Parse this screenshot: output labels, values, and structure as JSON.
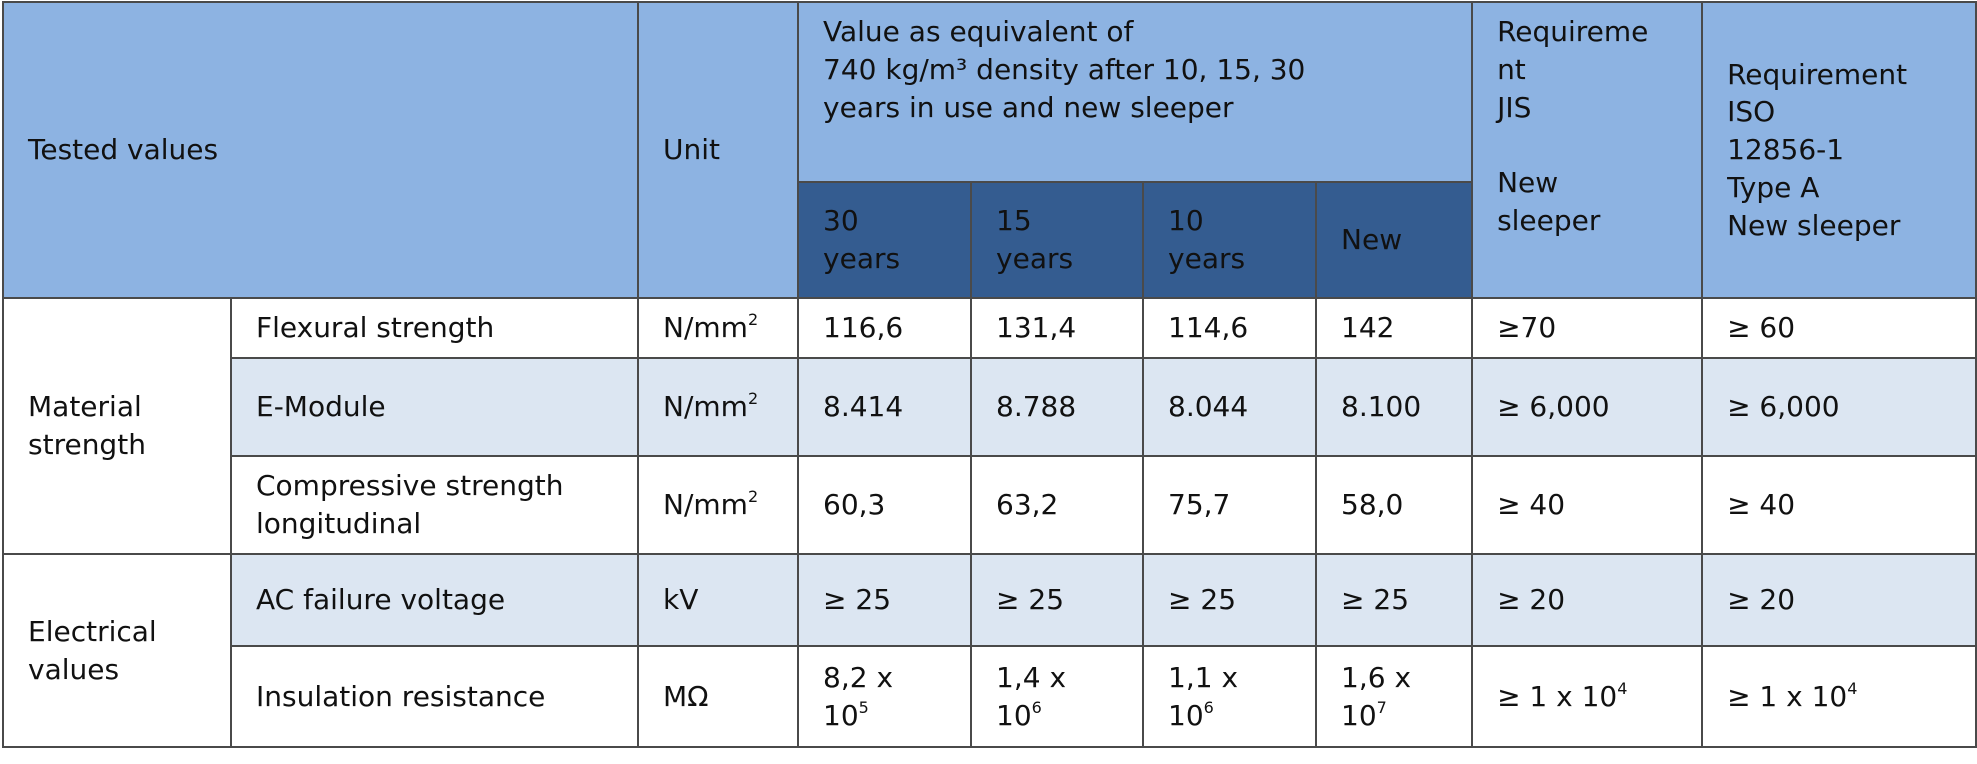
{
  "header": {
    "tested_values": "Tested values",
    "unit": "Unit",
    "value_title": [
      "Value as equivalent of",
      "740 kg/m³ density after 10, 15, 30",
      "years in use and new sleeper"
    ],
    "jis": [
      "Requireme",
      "nt",
      "JIS",
      "New",
      "sleeper"
    ],
    "iso": [
      "Requirement",
      "ISO",
      "12856-1",
      "Type A",
      "New sleeper"
    ],
    "sub": [
      [
        "30",
        "years"
      ],
      [
        "15",
        "years"
      ],
      [
        "10",
        "years"
      ],
      [
        "New"
      ]
    ]
  },
  "groups": {
    "material": [
      "Material",
      "strength"
    ],
    "electrical": [
      "Electrical",
      "values"
    ]
  },
  "rows": [
    {
      "label": [
        "Flexural strength"
      ],
      "unit": "N/mm",
      "unit_sup": "2",
      "values": [
        "116,6",
        "131,4",
        "114,6",
        "142"
      ],
      "jis": "≥70",
      "iso": "≥ 60"
    },
    {
      "label": [
        "E-Module"
      ],
      "unit": "N/mm",
      "unit_sup": "2",
      "values": [
        "8.414",
        "8.788",
        "8.044",
        "8.100"
      ],
      "jis": "≥ 6,000",
      "iso": "≥ 6,000"
    },
    {
      "label": [
        "Compressive strength",
        "longitudinal"
      ],
      "unit": "N/mm",
      "unit_sup": "2",
      "values": [
        "60,3",
        "63,2",
        "75,7",
        "58,0"
      ],
      "jis": "≥ 40",
      "iso": "≥ 40"
    },
    {
      "label": [
        "AC failure voltage"
      ],
      "unit": "kV",
      "values": [
        "≥ 25",
        "≥ 25",
        "≥ 25",
        "≥ 25"
      ],
      "jis": "≥ 20",
      "iso": "≥ 20"
    },
    {
      "label": [
        "Insulation resistance"
      ],
      "unit": "MΩ",
      "values_exp": [
        [
          "8,2 x",
          "10",
          "5"
        ],
        [
          "1,4 x",
          "10",
          "6"
        ],
        [
          "1,1 x",
          "10",
          "6"
        ],
        [
          "1,6 x",
          "10",
          "7"
        ]
      ],
      "jis": "≥ 1 x 10",
      "jis_sup": "4",
      "iso": "≥ 1 x 10",
      "iso_sup": "4"
    }
  ]
}
